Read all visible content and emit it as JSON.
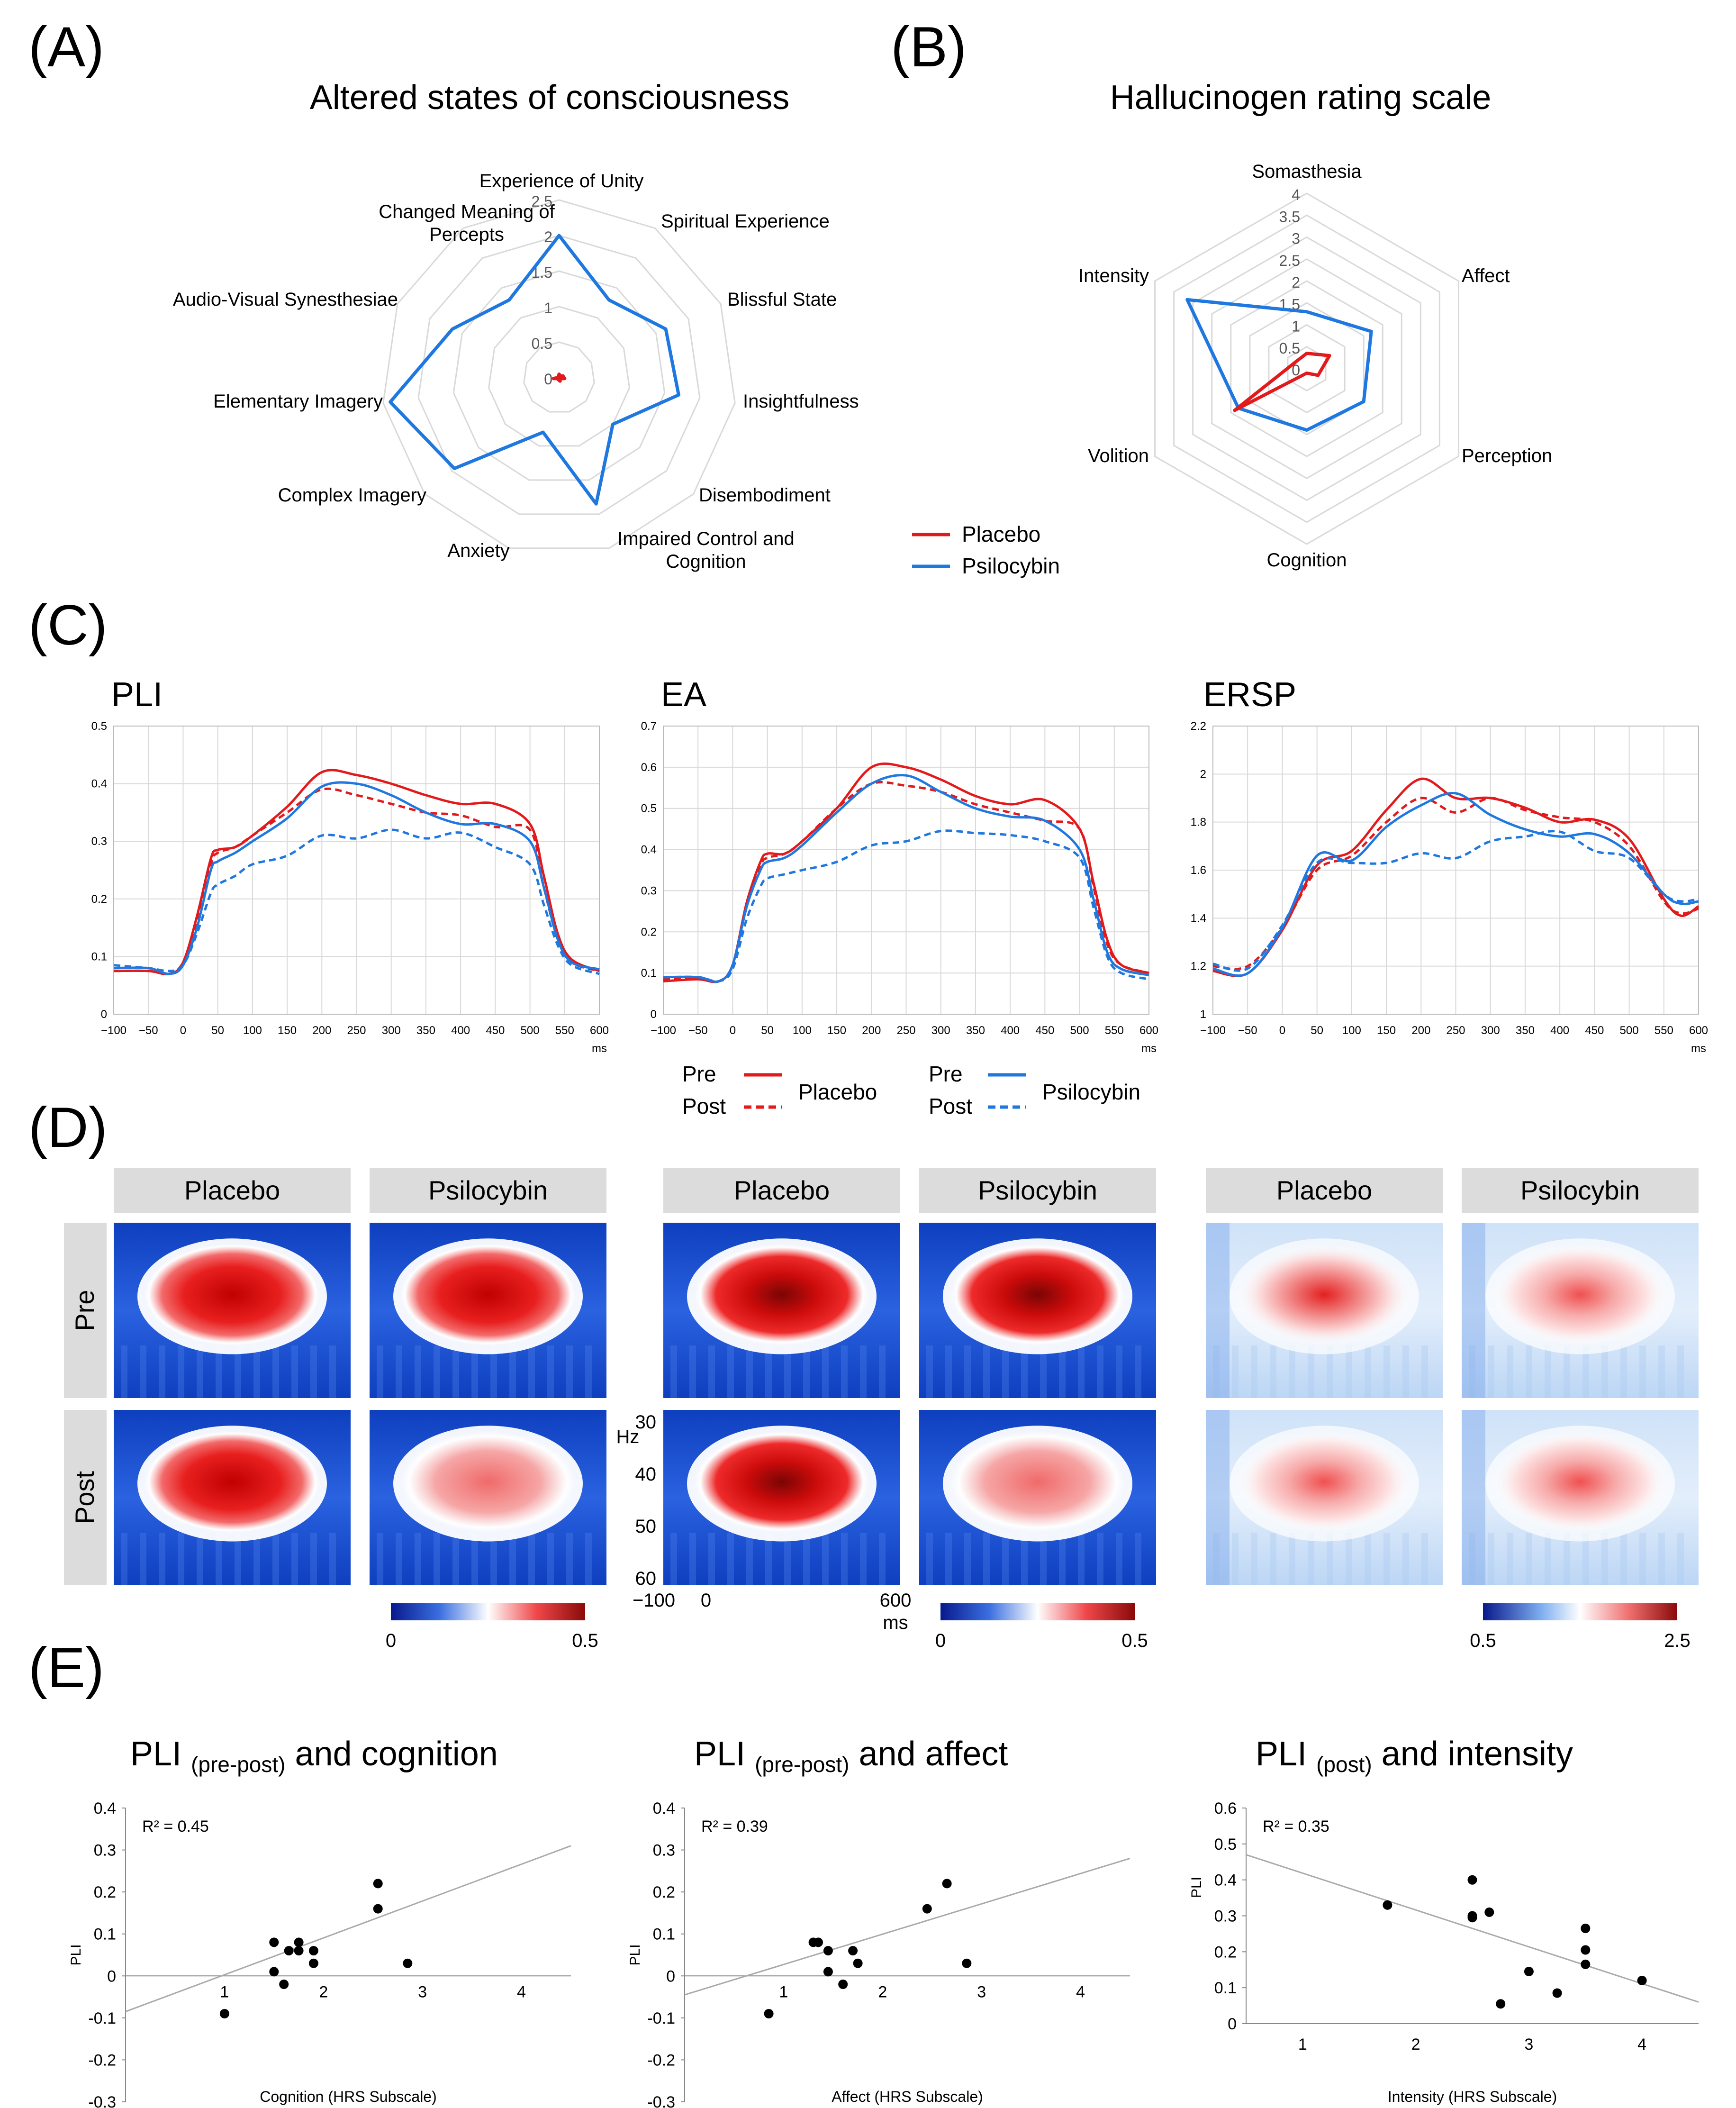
{
  "panel_labels": [
    "(A)",
    "(B)",
    "(C)",
    "(D)",
    "(E)"
  ],
  "colors": {
    "placebo": "#e31a1c",
    "psilocybin": "#1f78e0",
    "grid": "#d9d9d9",
    "axis": "#888888",
    "header_bg": "#dcdcdc"
  },
  "panelA": {
    "title": "Altered states of consciousness",
    "chart_data": {
      "type": "radar",
      "title": "Altered states of consciousness",
      "axes": [
        "Experience of Unity",
        "Spiritual Experience",
        "Blissful State",
        "Insightfulness",
        "Disembodiment",
        "Impaired Control and Cognition",
        "Anxiety",
        "Complex Imagery",
        "Elementary Imagery",
        "Audio-Visual Synesthesiae",
        "Changed Meaning of Percepts"
      ],
      "axis_labels": [
        "Experience of Unity",
        "Spiritual Experience",
        "Blissful State",
        "Insightfulness",
        "Disembodiment",
        "Impaired Control and|Cognition",
        "Anxiety",
        "Complex Imagery",
        "Elementary Imagery",
        "Audio-Visual Synesthesiae",
        "Changed Meaning of|Percepts"
      ],
      "rlim": [
        0,
        2.5
      ],
      "ticks": [
        "0",
        "0.5",
        "1",
        "1.5",
        "2",
        "2.5"
      ],
      "series": [
        {
          "name": "Placebo",
          "values": [
            0.05,
            0.03,
            0.06,
            0.08,
            0.02,
            0.05,
            0.03,
            0.02,
            0.08,
            0.01,
            0.02
          ]
        },
        {
          "name": "Psilocybin",
          "values": [
            2.0,
            1.3,
            1.65,
            1.7,
            1.0,
            1.85,
            0.8,
            1.95,
            2.4,
            1.65,
            1.3
          ]
        }
      ]
    }
  },
  "panelB": {
    "title": "Hallucinogen rating scale",
    "chart_data": {
      "type": "radar",
      "title": "Hallucinogen rating scale",
      "axes": [
        "Somasthesia",
        "Affect",
        "Perception",
        "Cognition",
        "Volition",
        "Intensity"
      ],
      "rlim": [
        0,
        4
      ],
      "ticks": [
        "0",
        "0.5",
        "1",
        "1.5",
        "2",
        "2.5",
        "3",
        "3.5",
        "4"
      ],
      "series": [
        {
          "name": "Placebo",
          "values": [
            0.35,
            0.6,
            0.3,
            0.1,
            1.9,
            0.3
          ]
        },
        {
          "name": "Psilocybin",
          "values": [
            1.3,
            1.7,
            1.5,
            1.4,
            1.8,
            3.15
          ]
        }
      ]
    },
    "legend": [
      {
        "label": "Placebo"
      },
      {
        "label": "Psilocybin"
      }
    ]
  },
  "panelC": {
    "x_ticks": [
      "−100",
      "−50",
      "0",
      "50",
      "100",
      "150",
      "200",
      "250",
      "300",
      "350",
      "400",
      "450",
      "500",
      "550",
      "600"
    ],
    "x_unit": "ms",
    "chart_data": [
      {
        "type": "line",
        "title": "PLI",
        "xlim": [
          -100,
          600
        ],
        "ylim": [
          0,
          0.5
        ],
        "yticks": [
          "0",
          "0.1",
          "0.2",
          "0.3",
          "0.4",
          "0.5"
        ],
        "x": [
          -100,
          -50,
          -20,
          0,
          20,
          40,
          50,
          75,
          100,
          150,
          200,
          250,
          300,
          350,
          400,
          450,
          500,
          520,
          540,
          560,
          600
        ],
        "series": [
          {
            "name": "Placebo Pre",
            "values": [
              0.075,
              0.075,
              0.07,
              0.09,
              0.17,
              0.27,
              0.285,
              0.29,
              0.31,
              0.36,
              0.42,
              0.415,
              0.4,
              0.38,
              0.365,
              0.365,
              0.33,
              0.24,
              0.14,
              0.095,
              0.075
            ]
          },
          {
            "name": "Placebo Post",
            "values": [
              0.075,
              0.075,
              0.07,
              0.09,
              0.16,
              0.26,
              0.28,
              0.29,
              0.31,
              0.35,
              0.39,
              0.38,
              0.365,
              0.35,
              0.345,
              0.325,
              0.32,
              0.22,
              0.13,
              0.09,
              0.075
            ]
          },
          {
            "name": "Psilocybin Pre",
            "values": [
              0.08,
              0.08,
              0.07,
              0.085,
              0.15,
              0.25,
              0.265,
              0.28,
              0.3,
              0.34,
              0.395,
              0.4,
              0.38,
              0.35,
              0.33,
              0.33,
              0.3,
              0.22,
              0.13,
              0.09,
              0.078
            ]
          },
          {
            "name": "Psilocybin Post",
            "values": [
              0.085,
              0.08,
              0.075,
              0.085,
              0.14,
              0.21,
              0.225,
              0.24,
              0.26,
              0.275,
              0.31,
              0.305,
              0.32,
              0.305,
              0.315,
              0.29,
              0.26,
              0.19,
              0.12,
              0.085,
              0.07
            ]
          }
        ]
      },
      {
        "type": "line",
        "title": "EA",
        "xlim": [
          -100,
          600
        ],
        "ylim": [
          0,
          0.7
        ],
        "yticks": [
          "0",
          "0.1",
          "0.2",
          "0.3",
          "0.4",
          "0.5",
          "0.6",
          "0.7"
        ],
        "x": [
          -100,
          -50,
          -20,
          0,
          20,
          40,
          50,
          75,
          100,
          150,
          200,
          250,
          300,
          350,
          400,
          450,
          500,
          520,
          540,
          560,
          600
        ],
        "series": [
          {
            "name": "Placebo Pre",
            "values": [
              0.08,
              0.085,
              0.08,
              0.12,
              0.27,
              0.37,
              0.39,
              0.39,
              0.42,
              0.5,
              0.6,
              0.6,
              0.57,
              0.53,
              0.51,
              0.52,
              0.45,
              0.32,
              0.18,
              0.12,
              0.1
            ]
          },
          {
            "name": "Placebo Post",
            "values": [
              0.085,
              0.085,
              0.08,
              0.12,
              0.26,
              0.36,
              0.38,
              0.39,
              0.42,
              0.5,
              0.56,
              0.555,
              0.54,
              0.51,
              0.49,
              0.47,
              0.45,
              0.31,
              0.17,
              0.12,
              0.1
            ]
          },
          {
            "name": "Psilocybin Pre",
            "values": [
              0.09,
              0.09,
              0.08,
              0.12,
              0.26,
              0.35,
              0.37,
              0.38,
              0.41,
              0.49,
              0.56,
              0.58,
              0.54,
              0.5,
              0.48,
              0.47,
              0.4,
              0.28,
              0.15,
              0.11,
              0.095
            ]
          },
          {
            "name": "Psilocybin Post",
            "values": [
              0.09,
              0.09,
              0.08,
              0.11,
              0.23,
              0.31,
              0.33,
              0.34,
              0.35,
              0.37,
              0.41,
              0.42,
              0.445,
              0.44,
              0.435,
              0.42,
              0.38,
              0.26,
              0.14,
              0.1,
              0.085
            ]
          }
        ]
      },
      {
        "type": "line",
        "title": "ERSP",
        "xlim": [
          -100,
          600
        ],
        "ylim": [
          1,
          2.2
        ],
        "yticks": [
          "1",
          "1.2",
          "1.4",
          "1.6",
          "1.8",
          "2",
          "2.2"
        ],
        "x": [
          -100,
          -50,
          0,
          50,
          100,
          150,
          200,
          250,
          300,
          350,
          400,
          450,
          500,
          550,
          575,
          600
        ],
        "series": [
          {
            "name": "Placebo Pre",
            "values": [
              1.18,
              1.17,
              1.35,
              1.62,
              1.68,
              1.85,
              1.98,
              1.9,
              1.9,
              1.86,
              1.8,
              1.81,
              1.73,
              1.48,
              1.41,
              1.45
            ]
          },
          {
            "name": "Placebo Post",
            "values": [
              1.2,
              1.2,
              1.36,
              1.6,
              1.66,
              1.8,
              1.9,
              1.84,
              1.9,
              1.85,
              1.82,
              1.8,
              1.7,
              1.47,
              1.42,
              1.44
            ]
          },
          {
            "name": "Psilocybin Pre",
            "values": [
              1.19,
              1.17,
              1.36,
              1.66,
              1.64,
              1.78,
              1.87,
              1.92,
              1.83,
              1.77,
              1.74,
              1.75,
              1.67,
              1.5,
              1.46,
              1.47
            ]
          },
          {
            "name": "Psilocybin Post",
            "values": [
              1.21,
              1.19,
              1.37,
              1.63,
              1.63,
              1.63,
              1.67,
              1.65,
              1.72,
              1.74,
              1.76,
              1.68,
              1.65,
              1.5,
              1.47,
              1.48
            ]
          }
        ]
      }
    ],
    "legend": {
      "pre": "Pre",
      "post": "Post",
      "placebo": "Placebo",
      "psilocybin": "Psilocybin"
    }
  },
  "panelD": {
    "col_headers": [
      "Placebo",
      "Psilocybin",
      "Placebo",
      "Psilocybin",
      "Placebo",
      "Psilocybin"
    ],
    "row_labels": [
      "Pre",
      "Post"
    ],
    "hz_label": "Hz",
    "hz_ticks": [
      "30",
      "40",
      "50",
      "60"
    ],
    "time_ticks": [
      "−100",
      "0",
      "600"
    ],
    "time_unit": "ms",
    "colorbars": [
      {
        "min": "0",
        "max": "0.5"
      },
      {
        "min": "0",
        "max": "0.5"
      },
      {
        "min": "0.5",
        "max": "2.5"
      }
    ],
    "chart_data": {
      "type": "heatmap",
      "description_cells": [
        {
          "group": "PLI",
          "condition": "Placebo",
          "phase": "Pre",
          "peak_intensity": 0.82
        },
        {
          "group": "PLI",
          "condition": "Psilocybin",
          "phase": "Pre",
          "peak_intensity": 0.78
        },
        {
          "group": "PLI",
          "condition": "Placebo",
          "phase": "Post",
          "peak_intensity": 0.82
        },
        {
          "group": "PLI",
          "condition": "Psilocybin",
          "phase": "Post",
          "peak_intensity": 0.55
        },
        {
          "group": "EA",
          "condition": "Placebo",
          "phase": "Pre",
          "peak_intensity": 0.95
        },
        {
          "group": "EA",
          "condition": "Psilocybin",
          "phase": "Pre",
          "peak_intensity": 0.9
        },
        {
          "group": "EA",
          "condition": "Placebo",
          "phase": "Post",
          "peak_intensity": 0.88
        },
        {
          "group": "EA",
          "condition": "Psilocybin",
          "phase": "Post",
          "peak_intensity": 0.6
        },
        {
          "group": "ERSP",
          "condition": "Placebo",
          "phase": "Pre",
          "peak_intensity": 0.7
        },
        {
          "group": "ERSP",
          "condition": "Psilocybin",
          "phase": "Pre",
          "peak_intensity": 0.6
        },
        {
          "group": "ERSP",
          "condition": "Placebo",
          "phase": "Post",
          "peak_intensity": 0.62
        },
        {
          "group": "ERSP",
          "condition": "Psilocybin",
          "phase": "Post",
          "peak_intensity": 0.5
        }
      ]
    }
  },
  "panelE": {
    "titles": [
      {
        "main": "PLI ",
        "sub": "(pre-post)",
        "rest": " and cognition"
      },
      {
        "main": "PLI ",
        "sub": "(pre-post)",
        "rest": " and affect"
      },
      {
        "main": "PLI ",
        "sub": "(post)",
        "rest": " and intensity"
      }
    ],
    "chart_data": [
      {
        "type": "scatter",
        "xlabel": "Cognition (HRS Subscale)",
        "ylabel": "PLI",
        "r2": "R² = 0.45",
        "xlim": [
          0,
          4.5
        ],
        "ylim": [
          -0.3,
          0.4
        ],
        "xticks": [
          "1",
          "2",
          "3",
          "4"
        ],
        "yticks": [
          "0.4",
          "0.3",
          "0.2",
          "0.1",
          "0",
          "-0.1",
          "-0.2",
          "-0.3"
        ],
        "points": [
          [
            1.0,
            -0.09
          ],
          [
            1.5,
            0.08
          ],
          [
            1.5,
            0.01
          ],
          [
            1.6,
            -0.02
          ],
          [
            1.65,
            0.06
          ],
          [
            1.75,
            0.06
          ],
          [
            1.75,
            0.08
          ],
          [
            1.9,
            0.03
          ],
          [
            1.9,
            0.06
          ],
          [
            2.55,
            0.16
          ],
          [
            2.55,
            0.22
          ],
          [
            2.85,
            0.03
          ]
        ],
        "trend": [
          [
            0,
            -0.085
          ],
          [
            4.5,
            0.31
          ]
        ]
      },
      {
        "type": "scatter",
        "xlabel": "Affect (HRS Subscale)",
        "ylabel": "PLI",
        "r2": "R² = 0.39",
        "xlim": [
          0,
          4.5
        ],
        "ylim": [
          -0.3,
          0.4
        ],
        "xticks": [
          "1",
          "2",
          "3",
          "4"
        ],
        "yticks": [
          "0.4",
          "0.3",
          "0.2",
          "0.1",
          "0",
          "-0.1",
          "-0.2",
          "-0.3"
        ],
        "points": [
          [
            0.85,
            -0.09
          ],
          [
            1.3,
            0.08
          ],
          [
            1.35,
            0.08
          ],
          [
            1.45,
            0.06
          ],
          [
            1.45,
            0.01
          ],
          [
            1.6,
            -0.02
          ],
          [
            1.7,
            0.06
          ],
          [
            1.75,
            0.03
          ],
          [
            2.45,
            0.16
          ],
          [
            2.65,
            0.22
          ],
          [
            2.85,
            0.03
          ]
        ],
        "trend": [
          [
            0,
            -0.045
          ],
          [
            4.5,
            0.28
          ]
        ]
      },
      {
        "type": "scatter",
        "xlabel": "Intensity (HRS Subscale)",
        "ylabel": "PLI",
        "r2": "R² = 0.35",
        "xlim": [
          0.5,
          4.5
        ],
        "ylim": [
          0,
          0.6
        ],
        "xticks": [
          "1",
          "2",
          "3",
          "4"
        ],
        "yticks": [
          "0.6",
          "0.5",
          "0.4",
          "0.3",
          "0.2",
          "0.1",
          "0"
        ],
        "points": [
          [
            1.75,
            0.33
          ],
          [
            2.5,
            0.4
          ],
          [
            2.5,
            0.3
          ],
          [
            2.5,
            0.295
          ],
          [
            2.65,
            0.31
          ],
          [
            2.75,
            0.055
          ],
          [
            3.0,
            0.145
          ],
          [
            3.25,
            0.085
          ],
          [
            3.5,
            0.265
          ],
          [
            3.5,
            0.205
          ],
          [
            3.5,
            0.165
          ],
          [
            4.0,
            0.12
          ]
        ],
        "trend": [
          [
            0.5,
            0.47
          ],
          [
            4.5,
            0.06
          ]
        ]
      }
    ]
  }
}
